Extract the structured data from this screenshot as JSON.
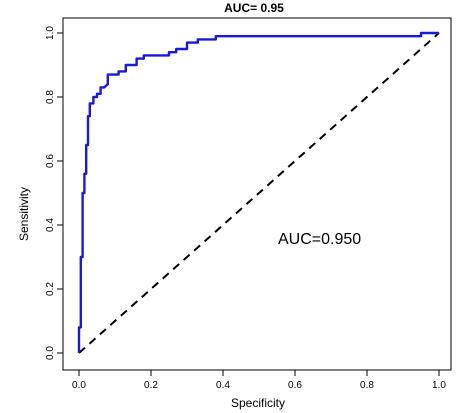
{
  "chart_data": {
    "type": "line",
    "title": "AUC= 0.95",
    "xlabel": "Specificity",
    "ylabel": "Sensitivity",
    "xlim": [
      0,
      1
    ],
    "ylim": [
      0,
      1
    ],
    "x_ticks": [
      "0.0",
      "0.2",
      "0.4",
      "0.6",
      "0.8",
      "1.0"
    ],
    "y_ticks": [
      "0.0",
      "0.2",
      "0.4",
      "0.6",
      "0.8",
      "1.0"
    ],
    "grid": false,
    "annotation": "AUC=0.950",
    "series": [
      {
        "color": "#1a1ad6",
        "x": [
          0.0,
          0.0,
          0.005,
          0.005,
          0.01,
          0.01,
          0.015,
          0.015,
          0.02,
          0.02,
          0.025,
          0.025,
          0.03,
          0.03,
          0.04,
          0.04,
          0.05,
          0.05,
          0.06,
          0.06,
          0.07,
          0.08,
          0.08,
          0.11,
          0.11,
          0.13,
          0.13,
          0.16,
          0.16,
          0.18,
          0.18,
          0.25,
          0.25,
          0.27,
          0.27,
          0.3,
          0.3,
          0.33,
          0.33,
          0.38,
          0.38,
          0.95,
          0.95,
          1.0
        ],
        "y": [
          0.0,
          0.08,
          0.08,
          0.3,
          0.3,
          0.5,
          0.5,
          0.56,
          0.56,
          0.65,
          0.65,
          0.74,
          0.74,
          0.78,
          0.78,
          0.8,
          0.8,
          0.81,
          0.81,
          0.83,
          0.83,
          0.84,
          0.87,
          0.87,
          0.88,
          0.88,
          0.9,
          0.9,
          0.92,
          0.92,
          0.93,
          0.93,
          0.94,
          0.94,
          0.95,
          0.95,
          0.97,
          0.97,
          0.98,
          0.98,
          0.99,
          0.99,
          1.0,
          1.0
        ]
      }
    ],
    "reference_line": {
      "x": [
        0,
        1
      ],
      "y": [
        0,
        1
      ],
      "style": "dashed",
      "color": "#000000"
    }
  }
}
